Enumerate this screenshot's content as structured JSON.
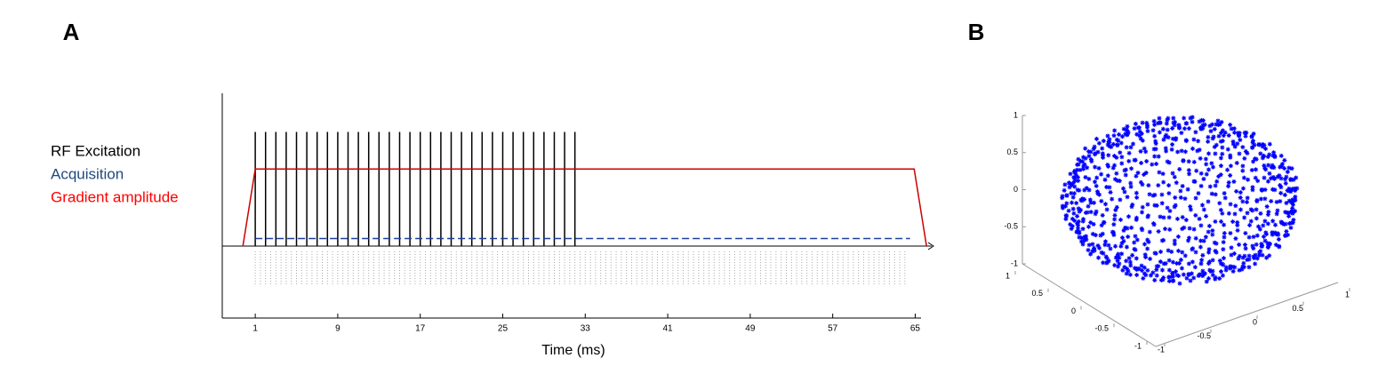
{
  "chart_data": [
    {
      "type": "timing",
      "panel": "A",
      "xlabel": "Time (ms)",
      "xlim": [
        -2.2,
        66.6
      ],
      "ylim": [
        -0.93,
        1.98
      ],
      "xticks": [
        1,
        9,
        17,
        25,
        33,
        41,
        49,
        57,
        65
      ],
      "series": [
        {
          "name": "RF Excitation",
          "color": "#000000",
          "x": [
            1,
            2,
            3,
            4,
            5,
            6,
            7,
            8,
            9,
            10,
            11,
            12,
            13,
            14,
            15,
            16,
            17,
            18,
            19,
            20,
            21,
            22,
            23,
            24,
            25,
            26,
            27,
            28,
            29,
            30,
            31,
            32
          ],
          "height": 1.48
        },
        {
          "name": "Acquisition",
          "color": "#1f3fa0",
          "legend_color": "#1f497d",
          "x": [
            1,
            64.5
          ],
          "values": [
            0.1,
            0.1
          ],
          "dashed": true,
          "sample_interval": 0.5
        },
        {
          "name": "Gradient amplitude",
          "color": "#cc0000",
          "legend_color": "#ff0000",
          "x": [
            -0.2,
            1,
            64.9,
            66.1
          ],
          "values": [
            0,
            1,
            1,
            0
          ]
        }
      ]
    },
    {
      "type": "scatter3d",
      "panel": "B",
      "color": "#0000ff",
      "xlim": [
        -1,
        1
      ],
      "ylim": [
        -1,
        1
      ],
      "zlim": [
        -1,
        1
      ],
      "xticks": [
        1,
        0.5,
        0,
        -0.5,
        -1
      ],
      "yticks": [
        -1,
        -0.5,
        0,
        0.5,
        1
      ],
      "zticks": [
        1,
        0.5,
        0,
        -0.5,
        -1
      ]
    }
  ]
}
